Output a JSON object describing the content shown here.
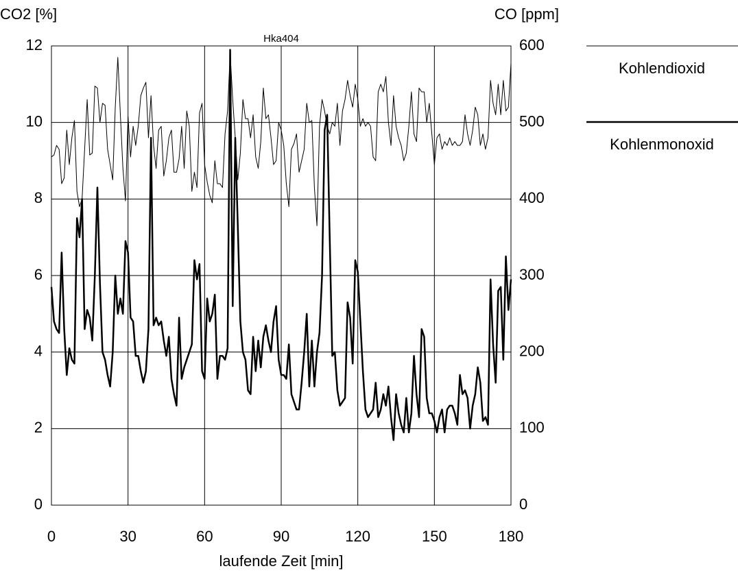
{
  "chart_data": {
    "type": "line",
    "title": "Hka404",
    "ylabel": "CO2 [%]",
    "y2label": "CO [ppm]",
    "xlabel": "laufende Zeit [min]",
    "x": [
      0,
      1,
      2,
      3,
      4,
      5,
      6,
      7,
      8,
      9,
      10,
      11,
      12,
      13,
      14,
      15,
      16,
      17,
      18,
      19,
      20,
      21,
      22,
      23,
      24,
      25,
      26,
      27,
      28,
      29,
      30,
      31,
      32,
      33,
      34,
      35,
      36,
      37,
      38,
      39,
      40,
      41,
      42,
      43,
      44,
      45,
      46,
      47,
      48,
      49,
      50,
      51,
      52,
      53,
      54,
      55,
      56,
      57,
      58,
      59,
      60,
      61,
      62,
      63,
      64,
      65,
      66,
      67,
      68,
      69,
      70,
      71,
      72,
      73,
      74,
      75,
      76,
      77,
      78,
      79,
      80,
      81,
      82,
      83,
      84,
      85,
      86,
      87,
      88,
      89,
      90,
      91,
      92,
      93,
      94,
      95,
      96,
      97,
      98,
      99,
      100,
      101,
      102,
      103,
      104,
      105,
      106,
      107,
      108,
      109,
      110,
      111,
      112,
      113,
      114,
      115,
      116,
      117,
      118,
      119,
      120,
      121,
      122,
      123,
      124,
      125,
      126,
      127,
      128,
      129,
      130,
      131,
      132,
      133,
      134,
      135,
      136,
      137,
      138,
      139,
      140,
      141,
      142,
      143,
      144,
      145,
      146,
      147,
      148,
      149,
      150,
      151,
      152,
      153,
      154,
      155,
      156,
      157,
      158,
      159,
      160,
      161,
      162,
      163,
      164,
      165,
      166,
      167,
      168,
      169,
      170,
      171,
      172,
      173,
      174,
      175,
      176,
      177,
      178,
      179,
      180
    ],
    "series": [
      {
        "name": "Kohlendioxid",
        "color": "#000000",
        "line_width": 1,
        "axis": "y",
        "values": [
          9.1,
          9.15,
          9.4,
          9.3,
          8.4,
          8.55,
          9.8,
          8.9,
          9.6,
          10.05,
          8.2,
          7.8,
          8.0,
          9.3,
          10.6,
          9.15,
          9.2,
          10.95,
          10.9,
          10.0,
          10.5,
          10.45,
          9.3,
          8.9,
          8.5,
          10.4,
          11.7,
          10.2,
          8.8,
          7.95,
          10.15,
          9.1,
          9.9,
          9.4,
          9.9,
          10.7,
          10.9,
          11.05,
          9.6,
          10.7,
          9.4,
          8.8,
          9.8,
          9.9,
          8.6,
          9.0,
          9.6,
          9.8,
          8.7,
          8.7,
          9.05,
          9.9,
          8.8,
          10.3,
          9.9,
          8.2,
          8.7,
          8.3,
          10.25,
          10.5,
          8.9,
          8.45,
          8.1,
          7.9,
          9.0,
          8.4,
          8.4,
          8.3,
          9.7,
          10.3,
          11.8,
          10.6,
          9.6,
          8.5,
          9.2,
          10.6,
          10.1,
          10.1,
          9.6,
          10.2,
          9.1,
          8.8,
          9.5,
          10.9,
          10.1,
          10.2,
          9.6,
          8.9,
          9.0,
          10.0,
          9.8,
          9.4,
          8.4,
          7.8,
          9.3,
          9.45,
          9.7,
          8.7,
          9.0,
          9.3,
          10.5,
          10.0,
          10.05,
          8.3,
          7.3,
          9.9,
          10.6,
          10.3,
          9.9,
          9.7,
          10.0,
          9.9,
          10.5,
          9.4,
          10.3,
          10.6,
          11.1,
          10.7,
          10.4,
          11.0,
          10.6,
          9.9,
          10.1,
          9.9,
          10.0,
          9.9,
          9.1,
          9.0,
          10.8,
          11.0,
          10.8,
          11.2,
          10.0,
          9.4,
          10.7,
          9.9,
          9.6,
          9.4,
          9.0,
          9.2,
          9.9,
          10.8,
          9.7,
          9.5,
          10.9,
          10.8,
          10.8,
          10.0,
          10.5,
          9.7,
          8.9,
          9.6,
          9.7,
          9.3,
          9.5,
          9.4,
          9.6,
          9.4,
          9.5,
          9.4,
          9.4,
          9.5,
          10.2,
          9.7,
          9.4,
          9.8,
          10.4,
          10.2,
          9.4,
          9.7,
          9.3,
          9.6,
          11.1,
          10.5,
          10.2,
          11.0,
          10.2,
          11.1,
          10.3,
          10.4,
          11.55
        ]
      },
      {
        "name": "Kohlenmonoxid",
        "color": "#000000",
        "line_width": 2.5,
        "axis": "y2",
        "values": [
          285,
          240,
          230,
          225,
          330,
          230,
          170,
          205,
          190,
          185,
          375,
          350,
          400,
          230,
          255,
          245,
          215,
          300,
          415,
          290,
          200,
          190,
          170,
          155,
          200,
          300,
          250,
          270,
          250,
          345,
          330,
          245,
          240,
          195,
          195,
          175,
          160,
          175,
          230,
          480,
          235,
          245,
          235,
          240,
          215,
          195,
          220,
          165,
          145,
          130,
          245,
          165,
          180,
          190,
          200,
          210,
          320,
          295,
          315,
          175,
          165,
          270,
          240,
          250,
          275,
          165,
          195,
          195,
          190,
          205,
          595,
          260,
          480,
          365,
          240,
          200,
          190,
          150,
          145,
          220,
          175,
          215,
          180,
          220,
          235,
          215,
          200,
          240,
          260,
          190,
          170,
          170,
          165,
          210,
          145,
          135,
          125,
          125,
          160,
          200,
          250,
          155,
          215,
          155,
          200,
          225,
          300,
          490,
          510,
          350,
          195,
          200,
          150,
          130,
          135,
          140,
          265,
          245,
          185,
          320,
          305,
          240,
          175,
          125,
          115,
          120,
          125,
          160,
          115,
          125,
          145,
          130,
          155,
          115,
          85,
          145,
          120,
          105,
          95,
          140,
          95,
          120,
          195,
          145,
          115,
          230,
          220,
          140,
          120,
          120,
          110,
          95,
          115,
          125,
          95,
          125,
          130,
          130,
          120,
          105,
          170,
          145,
          150,
          140,
          100,
          130,
          145,
          180,
          160,
          110,
          115,
          105,
          295,
          210,
          160,
          280,
          285,
          190,
          325,
          255,
          295
        ]
      }
    ],
    "xlim": [
      0,
      180
    ],
    "xticks": [
      0,
      30,
      60,
      90,
      120,
      150,
      180
    ],
    "ylim": [
      0,
      12
    ],
    "yticks": [
      0,
      2,
      4,
      6,
      8,
      10,
      12
    ],
    "y2lim": [
      0,
      600
    ],
    "y2ticks": [
      0,
      100,
      200,
      300,
      400,
      500,
      600
    ],
    "grid": true,
    "legend": "right"
  }
}
